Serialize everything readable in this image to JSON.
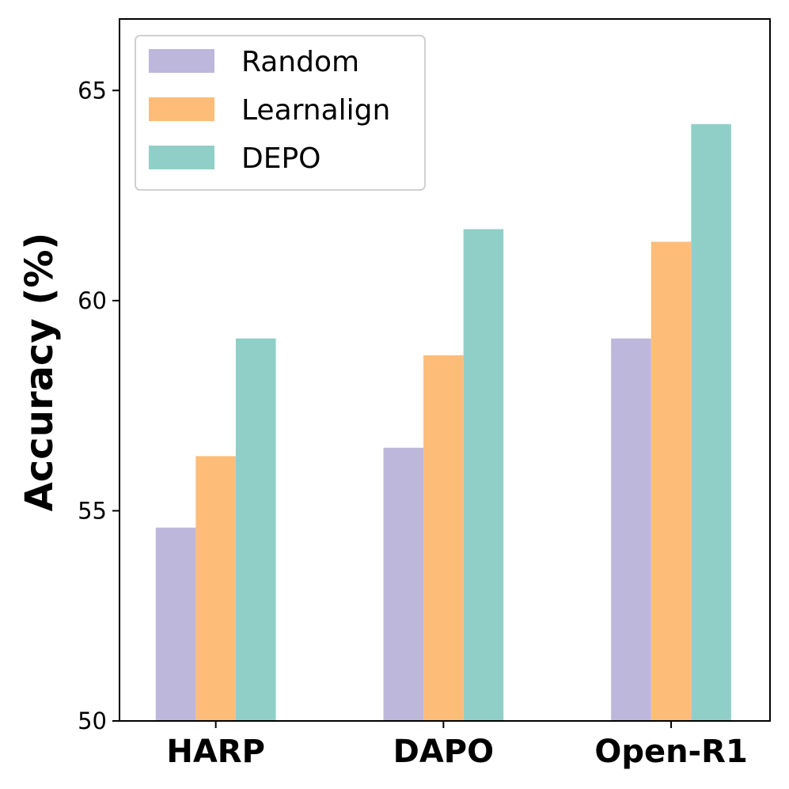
{
  "chart_data": {
    "type": "bar",
    "title": "",
    "xlabel": "",
    "ylabel": "Accuracy (%)",
    "ylim": [
      50,
      66.7
    ],
    "yticks": [
      50,
      55,
      60,
      65
    ],
    "ytick_labels": [
      "50",
      "55",
      "60",
      "65"
    ],
    "categories": [
      "HARP",
      "DAPO",
      "Open-R1"
    ],
    "series": [
      {
        "name": "Random",
        "color": "#bdb7db",
        "values": [
          54.6,
          56.5,
          59.1
        ]
      },
      {
        "name": "Learnalign",
        "color": "#fdbd79",
        "values": [
          56.3,
          58.7,
          61.4
        ]
      },
      {
        "name": "DEPO",
        "color": "#90cfc8",
        "values": [
          59.1,
          61.7,
          64.2
        ]
      }
    ],
    "legend": {
      "position": "top-left",
      "labels": [
        "Random",
        "Learnalign",
        "DEPO"
      ]
    },
    "grid": false
  }
}
